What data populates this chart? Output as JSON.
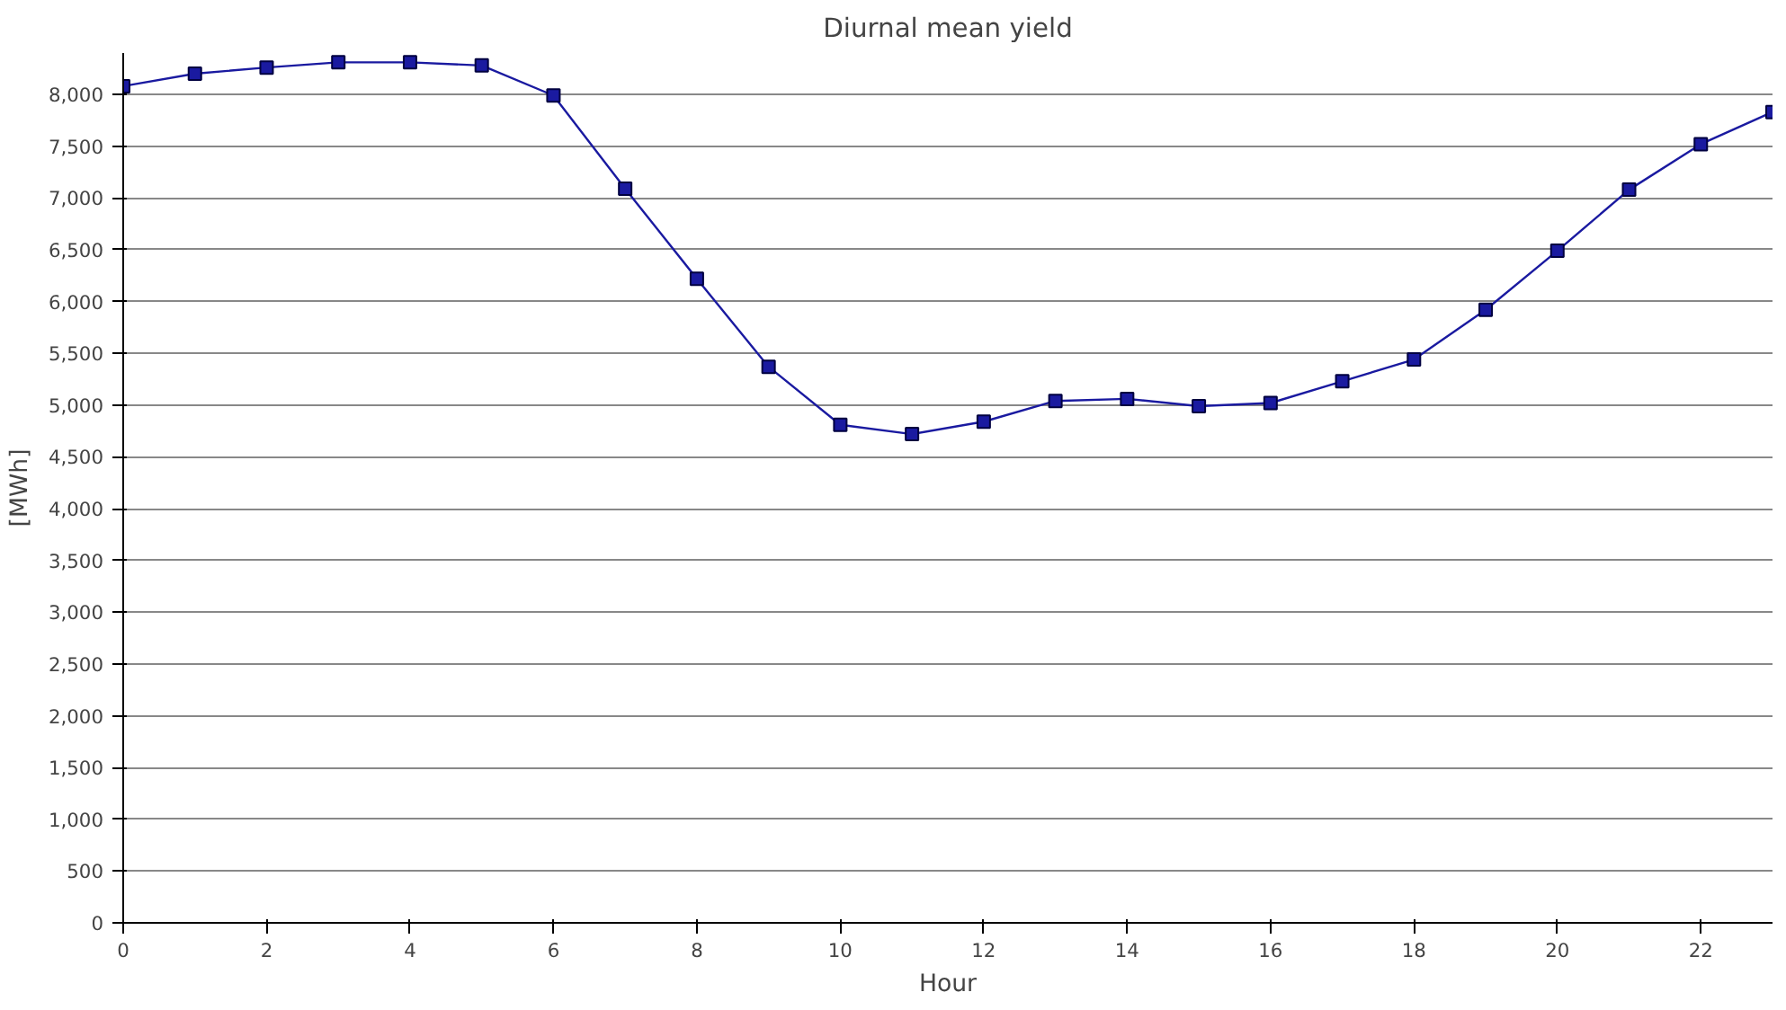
{
  "chart_data": {
    "type": "line",
    "title": "Diurnal mean yield",
    "xlabel": "Hour",
    "ylabel": "[MWh]",
    "x": [
      0,
      1,
      2,
      3,
      4,
      5,
      6,
      7,
      8,
      9,
      10,
      11,
      12,
      13,
      14,
      15,
      16,
      17,
      18,
      19,
      20,
      21,
      22,
      23
    ],
    "series": [
      {
        "color": "#1a1aa0",
        "values": [
          8080,
          8200,
          8260,
          8310,
          8310,
          8280,
          7990,
          7090,
          6220,
          5370,
          4810,
          4720,
          4840,
          5040,
          5060,
          4990,
          5020,
          5230,
          5440,
          5920,
          6490,
          7080,
          7520,
          7830
        ]
      }
    ],
    "xlim": [
      0,
      23
    ],
    "xticks": [
      0,
      2,
      4,
      6,
      8,
      10,
      12,
      14,
      16,
      18,
      20,
      22
    ],
    "ylim": [
      0,
      8400
    ],
    "yticks": [
      0,
      500,
      {
        "value": 1000,
        "label": "1,000"
      },
      {
        "value": 1500,
        "label": "1,500"
      },
      {
        "value": 2000,
        "label": "2,000"
      },
      {
        "value": 2500,
        "label": "2,500"
      },
      {
        "value": 3000,
        "label": "3,000"
      },
      {
        "value": 3500,
        "label": "3,500"
      },
      {
        "value": 4000,
        "label": "4,000"
      },
      {
        "value": 4500,
        "label": "4,500"
      },
      {
        "value": 5000,
        "label": "5,000"
      },
      {
        "value": 5500,
        "label": "5,500"
      },
      {
        "value": 6000,
        "label": "6,000"
      },
      {
        "value": 6500,
        "label": "6,500"
      },
      {
        "value": 7000,
        "label": "7,000"
      },
      {
        "value": 7500,
        "label": "7,500"
      },
      {
        "value": 8000,
        "label": "8,000"
      }
    ],
    "grid": "y",
    "marker": "square",
    "line_style": "solid"
  }
}
